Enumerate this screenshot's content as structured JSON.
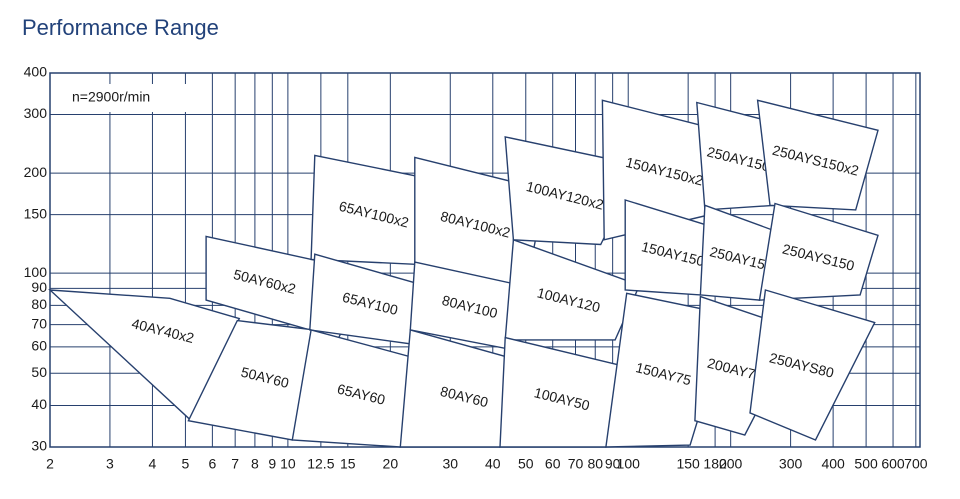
{
  "chart_data": {
    "type": "region",
    "title": "Performance Range",
    "annotation": "n=2900r/min",
    "log_x": true,
    "log_y": true,
    "grid": true,
    "color": "#27406e",
    "xlim": [
      2,
      720
    ],
    "ylim": [
      30,
      400
    ],
    "xticks": [
      2,
      3,
      4,
      5,
      6,
      7,
      8,
      9,
      10,
      12.5,
      15,
      20,
      30,
      40,
      50,
      60,
      70,
      80,
      90,
      100,
      150,
      180,
      200,
      300,
      400,
      500,
      600,
      700
    ],
    "yticks": [
      30,
      40,
      50,
      60,
      70,
      80,
      90,
      100,
      150,
      200,
      300,
      400
    ],
    "regions": [
      {
        "name": "40AY40x2",
        "x": [
          2,
          4.5,
          7.2,
          5.2
        ],
        "y": [
          89,
          84,
          73,
          36
        ]
      },
      {
        "name": "50AY60x2",
        "x": [
          5.75,
          13.8,
          11.6,
          5.75
        ],
        "y": [
          129,
          106,
          67.5,
          83
        ]
      },
      {
        "name": "50AY60",
        "x": [
          7.1,
          14.3,
          10.3,
          5.1
        ],
        "y": [
          72,
          66,
          31.5,
          36
        ]
      },
      {
        "name": "65AY100x2",
        "x": [
          12,
          29,
          25,
          11.7
        ],
        "y": [
          226,
          188,
          106,
          110
        ]
      },
      {
        "name": "65AY100",
        "x": [
          12,
          28,
          23.6,
          11.6
        ],
        "y": [
          114,
          89,
          61,
          67.5
        ]
      },
      {
        "name": "65AY60",
        "x": [
          11.7,
          28,
          21.4,
          10.3
        ],
        "y": [
          67.5,
          53,
          30,
          31.5
        ]
      },
      {
        "name": "80AY100x2",
        "x": [
          23.6,
          57,
          50,
          23.6
        ],
        "y": [
          223,
          178,
          89,
          106
        ]
      },
      {
        "name": "80AY100",
        "x": [
          23.6,
          56,
          45,
          22.9
        ],
        "y": [
          108,
          89,
          59,
          67.5
        ]
      },
      {
        "name": "80AY60",
        "x": [
          22.9,
          57,
          42,
          21.4
        ],
        "y": [
          67.5,
          52,
          30,
          30
        ]
      },
      {
        "name": "100AY120x2",
        "x": [
          43.5,
          108,
          83,
          46
        ],
        "y": [
          257,
          211,
          122,
          126
        ]
      },
      {
        "name": "100AY120",
        "x": [
          46,
          108,
          91.5,
          43.5
        ],
        "y": [
          126,
          92,
          63,
          63
        ]
      },
      {
        "name": "100AY50",
        "x": [
          43.5,
          105,
          86,
          42
        ],
        "y": [
          64,
          51.5,
          30,
          30
        ]
      },
      {
        "name": "150AY150x2",
        "x": [
          84,
          213,
          174,
          85
        ],
        "y": [
          331,
          260,
          150,
          126
        ]
      },
      {
        "name": "150AY150",
        "x": [
          98,
          213,
          163,
          98
        ],
        "y": [
          166,
          130,
          86,
          89
        ]
      },
      {
        "name": "150AY75",
        "x": [
          99,
          199,
          152,
          86
        ],
        "y": [
          87,
          75,
          30.4,
          30
        ]
      },
      {
        "name": "250AY150x2",
        "x": [
          159,
          331,
          270,
          168
        ],
        "y": [
          326,
          269,
          160,
          155
        ]
      },
      {
        "name": "250AY150",
        "x": [
          168,
          318,
          243,
          163
        ],
        "y": [
          160,
          126,
          83,
          86
        ]
      },
      {
        "name": "200AY75",
        "x": [
          163,
          318,
          220,
          157
        ],
        "y": [
          85,
          67.5,
          32.6,
          36
        ]
      },
      {
        "name": "250AYS150x2",
        "x": [
          240,
          542,
          466,
          261
        ],
        "y": [
          331,
          269,
          155,
          160
        ]
      },
      {
        "name": "250AYS150",
        "x": [
          270,
          542,
          480,
          243
        ],
        "y": [
          162,
          130,
          86,
          83
        ]
      },
      {
        "name": "250AYS80",
        "x": [
          253,
          530,
          355,
          228
        ],
        "y": [
          89,
          71,
          31.5,
          38
        ]
      }
    ]
  }
}
